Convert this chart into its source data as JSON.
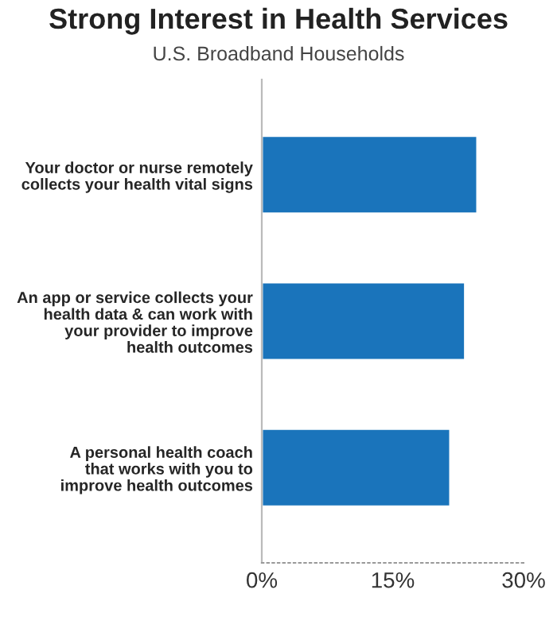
{
  "chart_data": {
    "type": "bar",
    "orientation": "horizontal",
    "title": "Strong Interest in Health Services",
    "subtitle": "U.S. Broadband Households",
    "categories": [
      "Your doctor or nurse remotely\ncollects your health vital signs",
      "An app or service collects your\nhealth data & can work with\nyour provider to improve\nhealth outcomes",
      "A personal health coach\nthat works with you to\nimprove health outcomes"
    ],
    "values": [
      24.7,
      23.3,
      21.6
    ],
    "color": "#1a74bb",
    "xlim": [
      0,
      30
    ],
    "xticks": [
      {
        "value": 0,
        "label": "0%"
      },
      {
        "value": 15,
        "label": "15%"
      },
      {
        "value": 30,
        "label": "30%"
      }
    ],
    "grid": false
  }
}
